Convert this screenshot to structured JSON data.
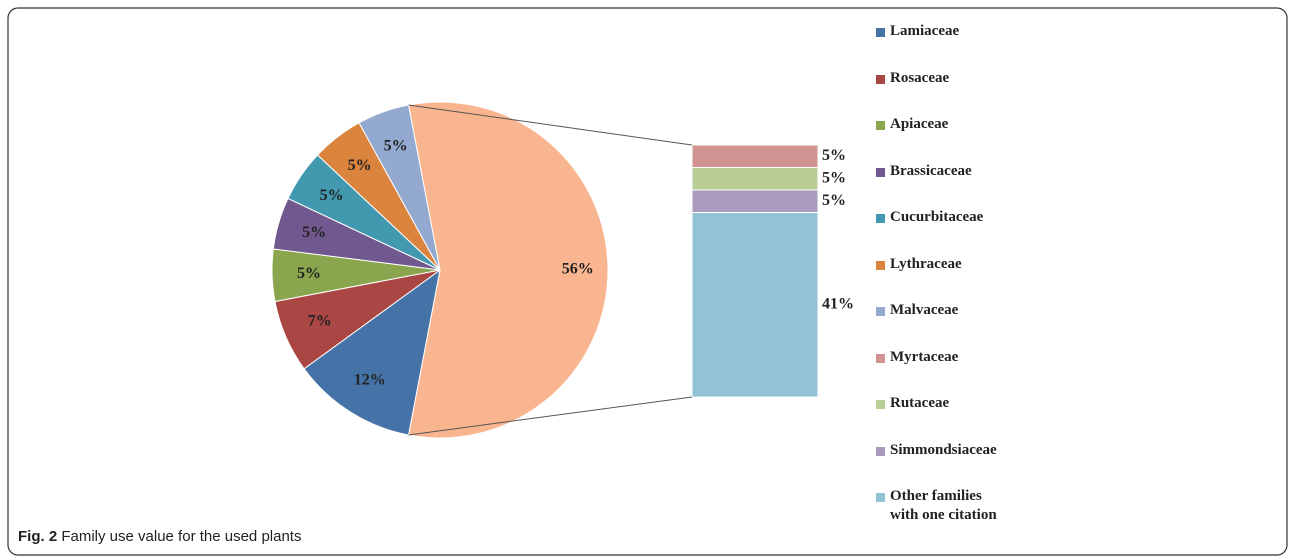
{
  "chart_data": {
    "type": "pie-of-bar",
    "categories": [
      "Lamiaceae",
      "Rosaceae",
      "Apiaceae",
      "Brassicaceae",
      "Cucurbitaceae",
      "Lythraceae",
      "Malvaceae"
    ],
    "values": [
      12,
      7,
      5,
      5,
      5,
      5,
      5
    ],
    "value_labels": [
      "12%",
      "7%",
      "5%",
      "5%",
      "5%",
      "5%",
      "5%"
    ],
    "colors": [
      "#4572a7",
      "#aa4643",
      "#89a54e",
      "#71588f",
      "#4198af",
      "#db843d",
      "#93a9cf"
    ],
    "other_value": 56,
    "other_value_label": "56%",
    "other_color": "#f9b58f",
    "bar_categories": [
      "Myrtaceae",
      "Rutaceae",
      "Simmondsiaceae",
      "Other families\nwith one citation"
    ],
    "bar_values": [
      5,
      5,
      5,
      41
    ],
    "bar_value_labels": [
      "5%",
      "5%",
      "5%",
      "41%"
    ],
    "bar_colors": [
      "#d19392",
      "#b9cd96",
      "#a99bbd",
      "#92c3d5"
    ]
  },
  "caption": {
    "label": "Fig. 2",
    "text": "Family use value for the used plants"
  }
}
